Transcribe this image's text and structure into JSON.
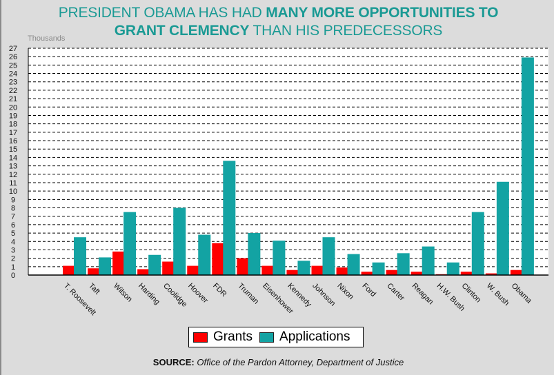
{
  "chart_data": {
    "type": "bar",
    "title_parts": [
      {
        "text": "PRESIDENT OBAMA HAS HAD ",
        "bold": false
      },
      {
        "text": "MANY MORE OPPORTUNITIES TO",
        "bold": true
      },
      {
        "text": "GRANT CLEMENCY",
        "bold": true
      },
      {
        "text": " THAN HIS PREDECESSORS",
        "bold": false
      }
    ],
    "title_line1_regular": "PRESIDENT OBAMA HAS HAD ",
    "title_line1_bold": "MANY MORE OPPORTUNITIES TO",
    "title_line2_bold": "GRANT CLEMENCY",
    "title_line2_regular": " THAN HIS PREDECESSORS",
    "ylabel": "Thousands",
    "xlabel": "",
    "ylim": [
      0,
      27
    ],
    "yticks": [
      0,
      1,
      2,
      3,
      4,
      5,
      6,
      7,
      8,
      9,
      10,
      11,
      12,
      13,
      14,
      15,
      16,
      17,
      18,
      19,
      20,
      21,
      22,
      23,
      24,
      25,
      26,
      27
    ],
    "grid": true,
    "legend_position": "bottom",
    "categories": [
      "T. Roosevelt",
      "Taft",
      "Wilson",
      "Harding",
      "Coolidge",
      "Hoover",
      "FDR",
      "Truman",
      "Eisenhower",
      "Kennedy",
      "Johnson",
      "Nixon",
      "Ford",
      "Carter",
      "Reagan",
      "H.W. Bush",
      "Clinton",
      "W. Bush",
      "Obama"
    ],
    "series": [
      {
        "name": "Grants",
        "color": "#ff0000",
        "values": [
          1.1,
          0.8,
          2.8,
          0.7,
          1.6,
          1.1,
          3.8,
          2.0,
          1.1,
          0.6,
          1.1,
          0.9,
          0.4,
          0.6,
          0.4,
          0.1,
          0.4,
          0.2,
          0.6
        ]
      },
      {
        "name": "Applications",
        "color": "#13a3a3",
        "values": [
          4.5,
          2.1,
          7.5,
          2.4,
          8.0,
          4.8,
          13.6,
          5.0,
          4.1,
          1.7,
          4.5,
          2.5,
          1.5,
          2.6,
          3.4,
          1.5,
          7.5,
          11.1,
          25.9
        ]
      }
    ],
    "source_label": "SOURCE:",
    "source_text": " Office of the Pardon Attorney, Department of Justice"
  }
}
